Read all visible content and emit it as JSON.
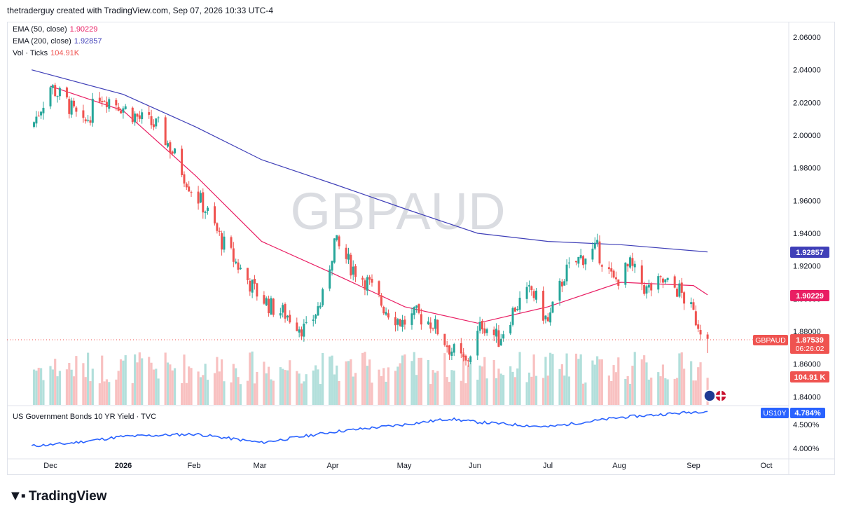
{
  "header": {
    "attribution": "thetraderguy created with TradingView.com, Sep 07, 2026 10:33 UTC-4"
  },
  "watermark": "GBPAUD",
  "legend": {
    "ema50_label": "EMA (50, close)",
    "ema50_value": "1.90229",
    "ema200_label": "EMA (200, close)",
    "ema200_value": "1.92857",
    "vol_label": "Vol · Ticks",
    "vol_value": "104.91K"
  },
  "price_scale": {
    "ticks": [
      "2.06000",
      "2.04000",
      "2.02000",
      "2.00000",
      "1.98000",
      "1.96000",
      "1.94000",
      "1.92000",
      "1.90000",
      "1.88000",
      "1.86000",
      "1.84000"
    ],
    "ema200_tag": "1.92857",
    "ema50_tag": "1.90229",
    "symbol_tag": "GBPAUD",
    "price_tag": "1.87539",
    "countdown_tag": "06:26:02",
    "volume_tag": "104.91 K"
  },
  "lower_pane": {
    "title": "US Government Bonds 10 YR Yield · TVC",
    "symbol_tag": "US10Y",
    "value_tag": "4.784%",
    "ticks": [
      "4.500%",
      "4.000%"
    ]
  },
  "time_axis": {
    "labels": [
      "Dec",
      "2026",
      "Feb",
      "Mar",
      "Apr",
      "May",
      "Jun",
      "Jul",
      "Aug",
      "Sep",
      "Oct"
    ]
  },
  "colors": {
    "up": "#26a69a",
    "down": "#ef5350",
    "ema50": "#e91e63",
    "ema200": "#3f3fb8",
    "yield": "#2962ff",
    "vol_up": "#b2dfdb",
    "vol_down": "#f8c1c1"
  },
  "logo": {
    "text": "TradingView"
  },
  "chart_data": {
    "type": "candlestick",
    "symbol": "GBPAUD",
    "ylim": [
      1.83,
      2.065
    ],
    "last_price": 1.87539,
    "ema50_last": 1.90229,
    "ema200_last": 1.92857,
    "volume_last": "104.91K",
    "anchors": [
      {
        "x": "Nov 23",
        "close": 2.005
      },
      {
        "x": "Dec 1",
        "close": 2.03
      },
      {
        "x": "Dec 8",
        "close": 2.02
      },
      {
        "x": "Dec 15",
        "close": 2.005
      },
      {
        "x": "Dec 22",
        "close": 2.025
      },
      {
        "x": "Dec 29",
        "close": 2.02
      },
      {
        "x": "Jan 8",
        "close": 2.01
      },
      {
        "x": "Jan 16",
        "close": 2.005
      },
      {
        "x": "Jan 22",
        "close": 1.99
      },
      {
        "x": "Jan 29",
        "close": 1.97
      },
      {
        "x": "Feb 5",
        "close": 1.955
      },
      {
        "x": "Feb 12",
        "close": 1.935
      },
      {
        "x": "Feb 19",
        "close": 1.92
      },
      {
        "x": "Feb 26",
        "close": 1.905
      },
      {
        "x": "Mar 5",
        "close": 1.895
      },
      {
        "x": "Mar 12",
        "close": 1.89
      },
      {
        "x": "Mar 20",
        "close": 1.88
      },
      {
        "x": "Mar 27",
        "close": 1.9
      },
      {
        "x": "Apr 1",
        "close": 1.935
      },
      {
        "x": "Apr 8",
        "close": 1.92
      },
      {
        "x": "Apr 15",
        "close": 1.91
      },
      {
        "x": "Apr 22",
        "close": 1.895
      },
      {
        "x": "Apr 30",
        "close": 1.885
      },
      {
        "x": "May 6",
        "close": 1.89
      },
      {
        "x": "May 13",
        "close": 1.885
      },
      {
        "x": "May 20",
        "close": 1.87
      },
      {
        "x": "May 27",
        "close": 1.86
      },
      {
        "x": "Jun 3",
        "close": 1.885
      },
      {
        "x": "Jun 10",
        "close": 1.875
      },
      {
        "x": "Jun 17",
        "close": 1.895
      },
      {
        "x": "Jun 24",
        "close": 1.905
      },
      {
        "x": "Jul 1",
        "close": 1.885
      },
      {
        "x": "Jul 8",
        "close": 1.915
      },
      {
        "x": "Jul 15",
        "close": 1.925
      },
      {
        "x": "Jul 22",
        "close": 1.93
      },
      {
        "x": "Jul 29",
        "close": 1.91
      },
      {
        "x": "Aug 5",
        "close": 1.92
      },
      {
        "x": "Aug 12",
        "close": 1.905
      },
      {
        "x": "Aug 19",
        "close": 1.91
      },
      {
        "x": "Aug 26",
        "close": 1.905
      },
      {
        "x": "Sep 1",
        "close": 1.89
      },
      {
        "x": "Sep 7",
        "close": 1.875
      }
    ],
    "ema50": [
      {
        "x": "Dec 1",
        "y": 2.03
      },
      {
        "x": "Jan 1",
        "y": 2.015
      },
      {
        "x": "Feb 1",
        "y": 1.975
      },
      {
        "x": "Mar 1",
        "y": 1.935
      },
      {
        "x": "Apr 1",
        "y": 1.915
      },
      {
        "x": "May 1",
        "y": 1.895
      },
      {
        "x": "Jun 1",
        "y": 1.885
      },
      {
        "x": "Jul 1",
        "y": 1.895
      },
      {
        "x": "Aug 1",
        "y": 1.91
      },
      {
        "x": "Sep 1",
        "y": 1.908
      },
      {
        "x": "Sep 7",
        "y": 1.90229
      }
    ],
    "ema200": [
      {
        "x": "Nov 23",
        "y": 2.04
      },
      {
        "x": "Jan 1",
        "y": 2.025
      },
      {
        "x": "Feb 1",
        "y": 2.005
      },
      {
        "x": "Mar 1",
        "y": 1.985
      },
      {
        "x": "Apr 1",
        "y": 1.97
      },
      {
        "x": "May 1",
        "y": 1.955
      },
      {
        "x": "Jun 1",
        "y": 1.94
      },
      {
        "x": "Jul 1",
        "y": 1.935
      },
      {
        "x": "Aug 1",
        "y": 1.933
      },
      {
        "x": "Sep 7",
        "y": 1.92857
      }
    ],
    "us10y": {
      "ylim": [
        3.9,
        4.9
      ],
      "points": [
        {
          "x": "Nov 23",
          "y": 4.05
        },
        {
          "x": "Dec 8",
          "y": 4.1
        },
        {
          "x": "Jan 1",
          "y": 4.25
        },
        {
          "x": "Feb 1",
          "y": 4.3
        },
        {
          "x": "Mar 1",
          "y": 4.12
        },
        {
          "x": "Apr 1",
          "y": 4.35
        },
        {
          "x": "May 1",
          "y": 4.5
        },
        {
          "x": "May 20",
          "y": 4.62
        },
        {
          "x": "Jun 1",
          "y": 4.55
        },
        {
          "x": "Jul 1",
          "y": 4.45
        },
        {
          "x": "Aug 1",
          "y": 4.65
        },
        {
          "x": "Sep 7",
          "y": 4.784
        }
      ]
    }
  }
}
